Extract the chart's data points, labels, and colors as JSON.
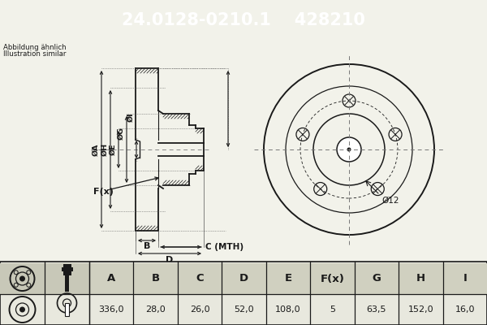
{
  "title_part": "24.0128-0210.1",
  "title_oem": "428210",
  "header_bg": "#1565c0",
  "header_text_color": "#ffffff",
  "note_line1": "Abbildung ähnlich",
  "note_line2": "Illustration similar",
  "dim_label_12": "Ø12",
  "table_headers": [
    "A",
    "B",
    "C",
    "D",
    "E",
    "F(x)",
    "G",
    "H",
    "I"
  ],
  "table_values": [
    "336,0",
    "28,0",
    "26,0",
    "52,0",
    "108,0",
    "5",
    "63,5",
    "152,0",
    "16,0"
  ],
  "bg_color": "#f2f2ea",
  "line_color": "#1a1a1a",
  "table_border_color": "#555555",
  "white": "#ffffff"
}
